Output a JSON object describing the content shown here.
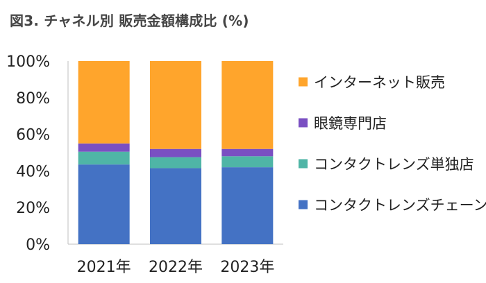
{
  "title": "図3. チャネル別 販売金額構成比 (%)",
  "chart_data": {
    "type": "bar",
    "stacked": true,
    "categories": [
      "2021年",
      "2022年",
      "2023年"
    ],
    "y_ticks": [
      "0%",
      "20%",
      "40%",
      "60%",
      "80%",
      "100%"
    ],
    "ylim": [
      0,
      100
    ],
    "series": [
      {
        "name": "コンタクトレンズチェーン",
        "color": "#4472C4",
        "values": [
          43.5,
          41.5,
          42
        ]
      },
      {
        "name": "コンタクトレンズ単独店",
        "color": "#4FB5A6",
        "values": [
          7,
          6,
          6
        ]
      },
      {
        "name": "眼鏡専門店",
        "color": "#7A4FC2",
        "values": [
          4.5,
          4.5,
          4
        ]
      },
      {
        "name": "インターネット販売",
        "color": "#FFA52C",
        "values": [
          45,
          48,
          48
        ]
      }
    ],
    "legend_position": "right"
  }
}
